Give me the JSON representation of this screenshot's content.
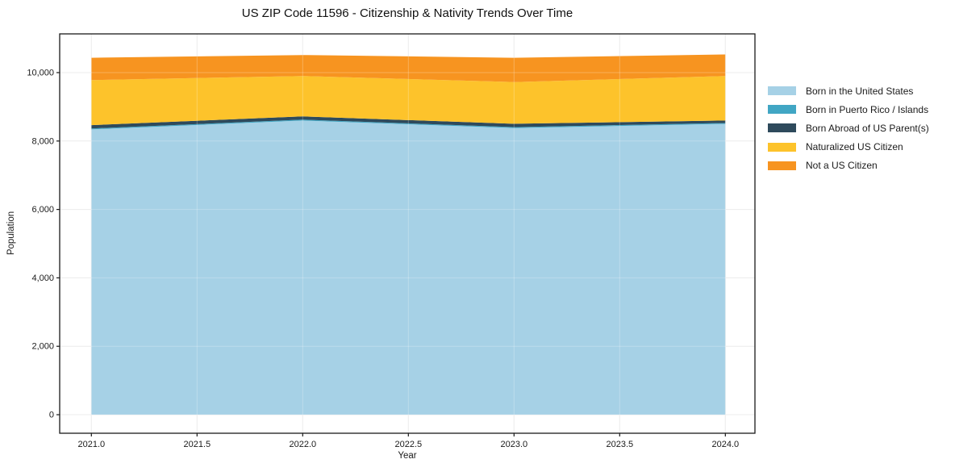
{
  "title": "US ZIP Code 11596 - Citizenship & Nativity Trends Over Time",
  "chart_data": {
    "type": "area",
    "stacked": true,
    "title": "US ZIP Code 11596 - Citizenship & Nativity Trends Over Time",
    "xlabel": "Year",
    "ylabel": "Population",
    "x": [
      2021,
      2022,
      2023,
      2024
    ],
    "series": [
      {
        "name": "Born in the United States",
        "color": "#A6D1E6",
        "values": [
          8340,
          8600,
          8380,
          8500
        ]
      },
      {
        "name": "Born in Puerto Rico / Islands",
        "color": "#41A6C4",
        "values": [
          25,
          25,
          25,
          25
        ]
      },
      {
        "name": "Born Abroad of US Parent(s)",
        "color": "#2E4A5C",
        "values": [
          100,
          95,
          100,
          75
        ]
      },
      {
        "name": "Naturalized US Citizen",
        "color": "#FDC32B",
        "values": [
          1315,
          1180,
          1220,
          1300
        ]
      },
      {
        "name": "Not a US Citizen",
        "color": "#F79420",
        "values": [
          655,
          615,
          710,
          630
        ]
      }
    ],
    "totals": [
      10435,
      10515,
      10435,
      10530
    ],
    "xticks": [
      2021.0,
      2021.5,
      2022.0,
      2022.5,
      2023.0,
      2023.5,
      2024.0
    ],
    "xtick_labels": [
      "2021.0",
      "2021.5",
      "2022.0",
      "2022.5",
      "2023.0",
      "2023.5",
      "2024.0"
    ],
    "yticks": [
      0,
      2000,
      4000,
      6000,
      8000,
      10000
    ],
    "ytick_labels": [
      "0",
      "2,000",
      "4,000",
      "6,000",
      "8,000",
      "10,000"
    ],
    "xlim": [
      2020.85,
      2024.14
    ],
    "ylim": [
      -542,
      11132
    ],
    "grid": true,
    "grid_color": "#e7e7e7",
    "axis_color": "#1a1a1a",
    "legend_position": "right"
  }
}
